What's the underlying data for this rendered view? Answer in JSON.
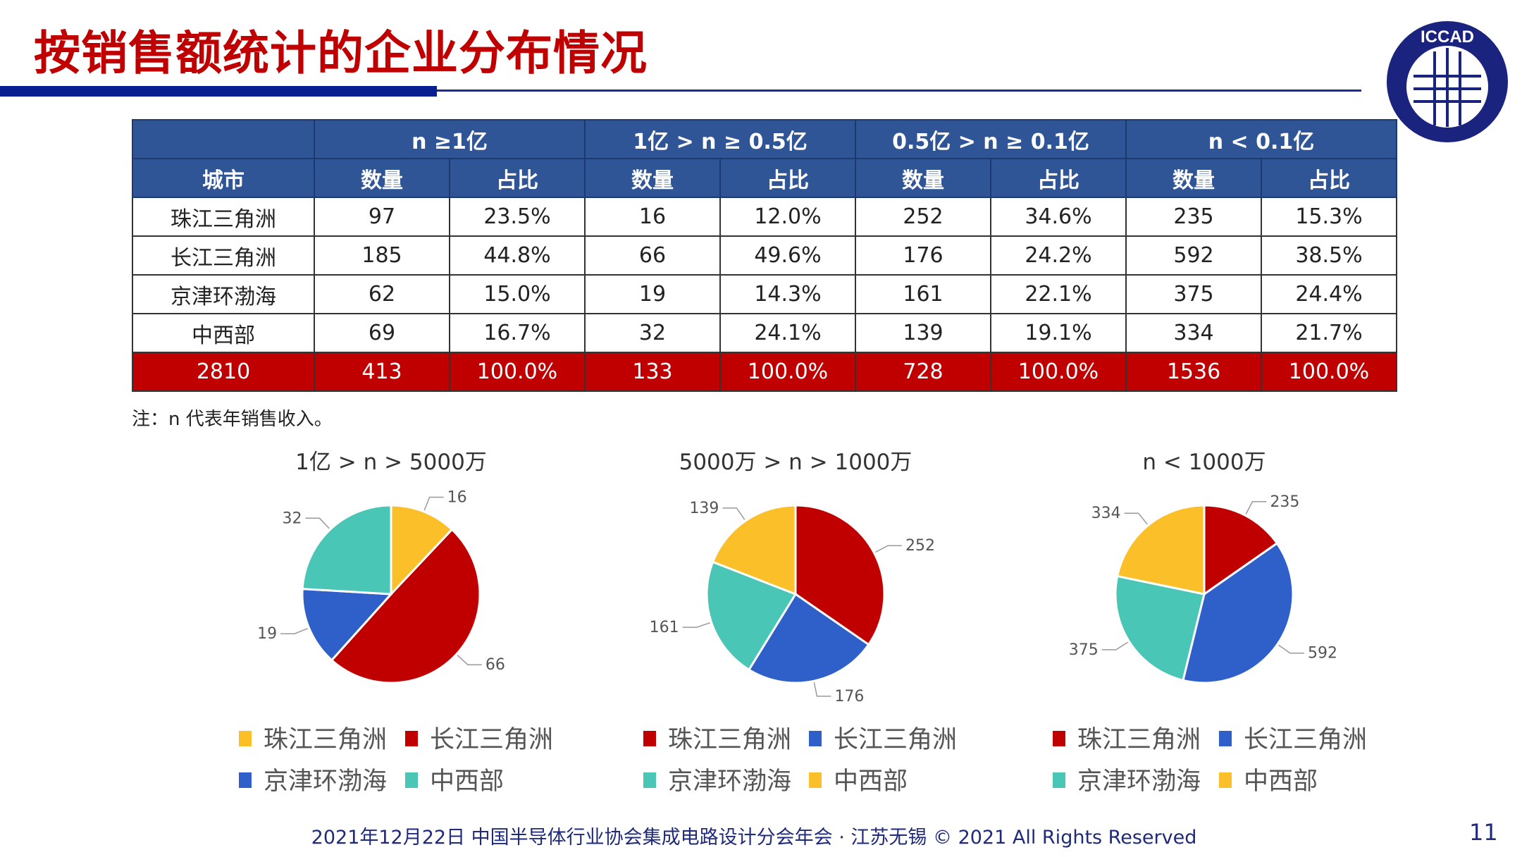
{
  "title": "按销售额统计的企业分布情况",
  "logo_text": "ICCAD",
  "table": {
    "group_headers": [
      "n ≥1亿",
      "1亿 > n ≥ 0.5亿",
      "0.5亿 > n ≥ 0.1亿",
      "n < 0.1亿"
    ],
    "sub_headers": [
      "城市",
      "数量",
      "占比",
      "数量",
      "占比",
      "数量",
      "占比",
      "数量",
      "占比"
    ],
    "rows": [
      [
        "珠江三角洲",
        "97",
        "23.5%",
        "16",
        "12.0%",
        "252",
        "34.6%",
        "235",
        "15.3%"
      ],
      [
        "长江三角洲",
        "185",
        "44.8%",
        "66",
        "49.6%",
        "176",
        "24.2%",
        "592",
        "38.5%"
      ],
      [
        "京津环渤海",
        "62",
        "15.0%",
        "19",
        "14.3%",
        "161",
        "22.1%",
        "375",
        "24.4%"
      ],
      [
        "中西部",
        "69",
        "16.7%",
        "32",
        "24.1%",
        "139",
        "19.1%",
        "334",
        "21.7%"
      ]
    ],
    "total": [
      "2810",
      "413",
      "100.0%",
      "133",
      "100.0%",
      "728",
      "100.0%",
      "1536",
      "100.0%"
    ]
  },
  "note": "注：n 代表年销售收入。",
  "chart_data": [
    {
      "type": "pie",
      "title": "1亿 > n > 5000万",
      "categories": [
        "珠江三角洲",
        "长江三角洲",
        "京津环渤海",
        "中西部"
      ],
      "values": [
        16,
        66,
        19,
        32
      ],
      "colors": [
        "#fbbf2a",
        "#c00000",
        "#2f5fc8",
        "#4ac6b7"
      ],
      "legend": "bottom"
    },
    {
      "type": "pie",
      "title": "5000万 > n > 1000万",
      "categories": [
        "珠江三角洲",
        "长江三角洲",
        "京津环渤海",
        "中西部"
      ],
      "values": [
        252,
        176,
        161,
        139
      ],
      "colors": [
        "#c00000",
        "#2f5fc8",
        "#4ac6b7",
        "#fbbf2a"
      ],
      "legend": "bottom"
    },
    {
      "type": "pie",
      "title": "n < 1000万",
      "categories": [
        "珠江三角洲",
        "长江三角洲",
        "京津环渤海",
        "中西部"
      ],
      "values": [
        235,
        592,
        375,
        334
      ],
      "colors": [
        "#c00000",
        "#2f5fc8",
        "#4ac6b7",
        "#fbbf2a"
      ],
      "legend": "bottom"
    }
  ],
  "footer": "2021年12月22日 中国半导体行业协会集成电路设计分会年会 · 江苏无锡 © 2021 All Rights Reserved",
  "page_number": "11"
}
